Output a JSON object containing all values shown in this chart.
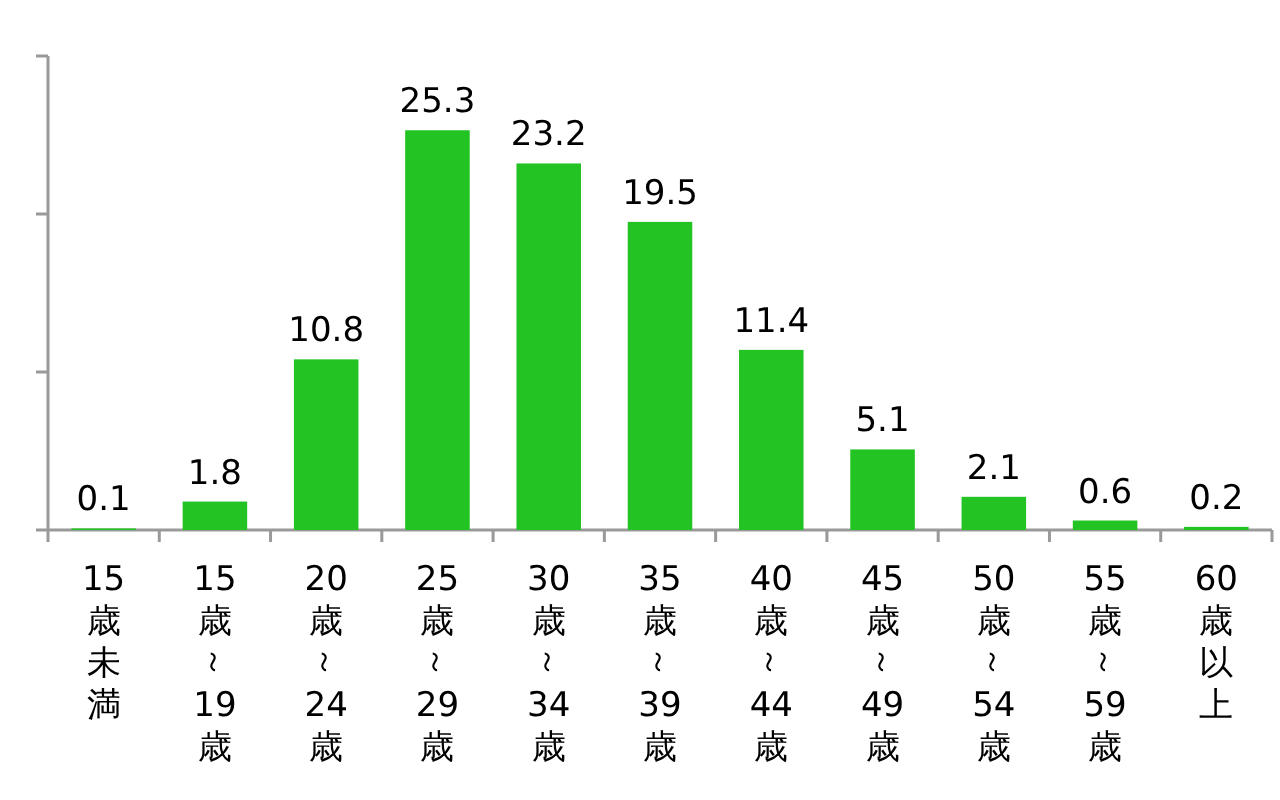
{
  "chart_data": {
    "type": "bar",
    "categories": [
      "15歳未満",
      "15歳～19歳",
      "20歳～24歳",
      "25歳～29歳",
      "30歳～34歳",
      "35歳～39歳",
      "40歳～44歳",
      "45歳～49歳",
      "50歳～54歳",
      "55歳～59歳",
      "60歳以上"
    ],
    "values": [
      0.1,
      1.8,
      10.8,
      25.3,
      23.2,
      19.5,
      11.4,
      5.1,
      2.1,
      0.6,
      0.2
    ],
    "color": "#22c322",
    "ylim": [
      0,
      30
    ],
    "yticks": [
      {
        "value": 0,
        "label": null
      },
      {
        "value": 10,
        "label": null
      },
      {
        "value": 20,
        "label": null
      },
      {
        "value": 30,
        "label": null
      }
    ],
    "tick_labels": "x",
    "data_labels": true
  }
}
